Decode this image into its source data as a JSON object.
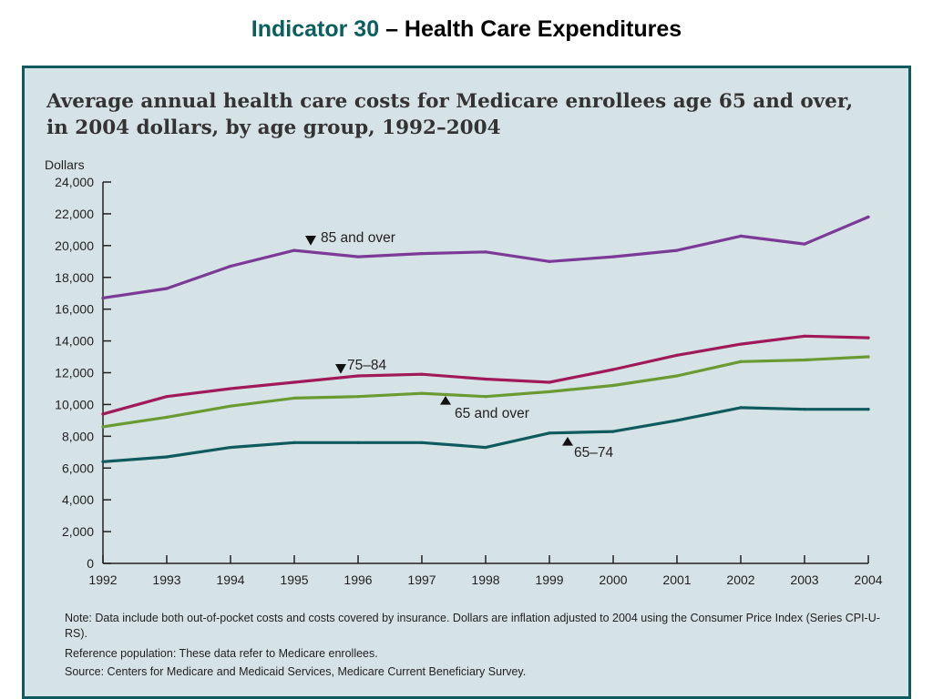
{
  "slide": {
    "title_prefix": "Indicator 30",
    "title_suffix": " – Health Care Expenditures"
  },
  "chart_data": {
    "type": "line",
    "title": "Average annual health care costs for Medicare enrollees age 65 and over, in 2004 dollars, by age group, 1992–2004",
    "title_line1": "Average annual health care costs for Medicare enrollees age 65 and over,",
    "title_line2": "in 2004 dollars, by age group, 1992–2004",
    "ylabel": "Dollars",
    "xlabel": "",
    "ylim": [
      0,
      24000
    ],
    "yticks": [
      0,
      2000,
      4000,
      6000,
      8000,
      10000,
      12000,
      14000,
      16000,
      18000,
      20000,
      22000,
      24000
    ],
    "ytick_labels": [
      "0",
      "2,000",
      "4,000",
      "6,000",
      "8,000",
      "10,000",
      "12,000",
      "14,000",
      "16,000",
      "18,000",
      "20,000",
      "22,000",
      "24,000"
    ],
    "x": [
      "1992",
      "1993",
      "1994",
      "1995",
      "1996",
      "1997",
      "1998",
      "1999",
      "2000",
      "2001",
      "2002",
      "2003",
      "2004"
    ],
    "grid": false,
    "series": [
      {
        "name": "85 and over",
        "color": "#7b3a96",
        "values": [
          16700,
          17300,
          18700,
          19700,
          19300,
          19500,
          19600,
          19000,
          19300,
          19700,
          20600,
          20100,
          21800
        ]
      },
      {
        "name": "75–84",
        "color": "#a0195a",
        "values": [
          9400,
          10500,
          11000,
          11400,
          11800,
          11900,
          11600,
          11400,
          12200,
          13100,
          13800,
          14300,
          14200
        ]
      },
      {
        "name": "65 and over",
        "color": "#6b9a32",
        "values": [
          8600,
          9200,
          9900,
          10400,
          10500,
          10700,
          10500,
          10800,
          11200,
          11800,
          12700,
          12800,
          13000
        ]
      },
      {
        "name": "65–74",
        "color": "#0f5a5e",
        "values": [
          6400,
          6700,
          7300,
          7600,
          7600,
          7600,
          7300,
          8200,
          8300,
          9000,
          9800,
          9700,
          9700
        ]
      }
    ],
    "annotations": [
      {
        "text": "85 and over",
        "series": "85 and over",
        "marker": "down-triangle"
      },
      {
        "text": "75–84",
        "series": "75–84",
        "marker": "down-triangle"
      },
      {
        "text": "65 and over",
        "series": "65 and over",
        "marker": "up-triangle"
      },
      {
        "text": "65–74",
        "series": "65–74",
        "marker": "up-triangle"
      }
    ]
  },
  "notes": {
    "note": "Note: Data include both out-of-pocket costs and costs covered by insurance.  Dollars are inflation adjusted to 2004 using the Consumer Price Index (Series CPI-U-RS).",
    "reference": "Reference population:  These data refer to Medicare enrollees.",
    "source": "Source:  Centers for Medicare and Medicaid Services, Medicare Current Beneficiary Survey."
  }
}
